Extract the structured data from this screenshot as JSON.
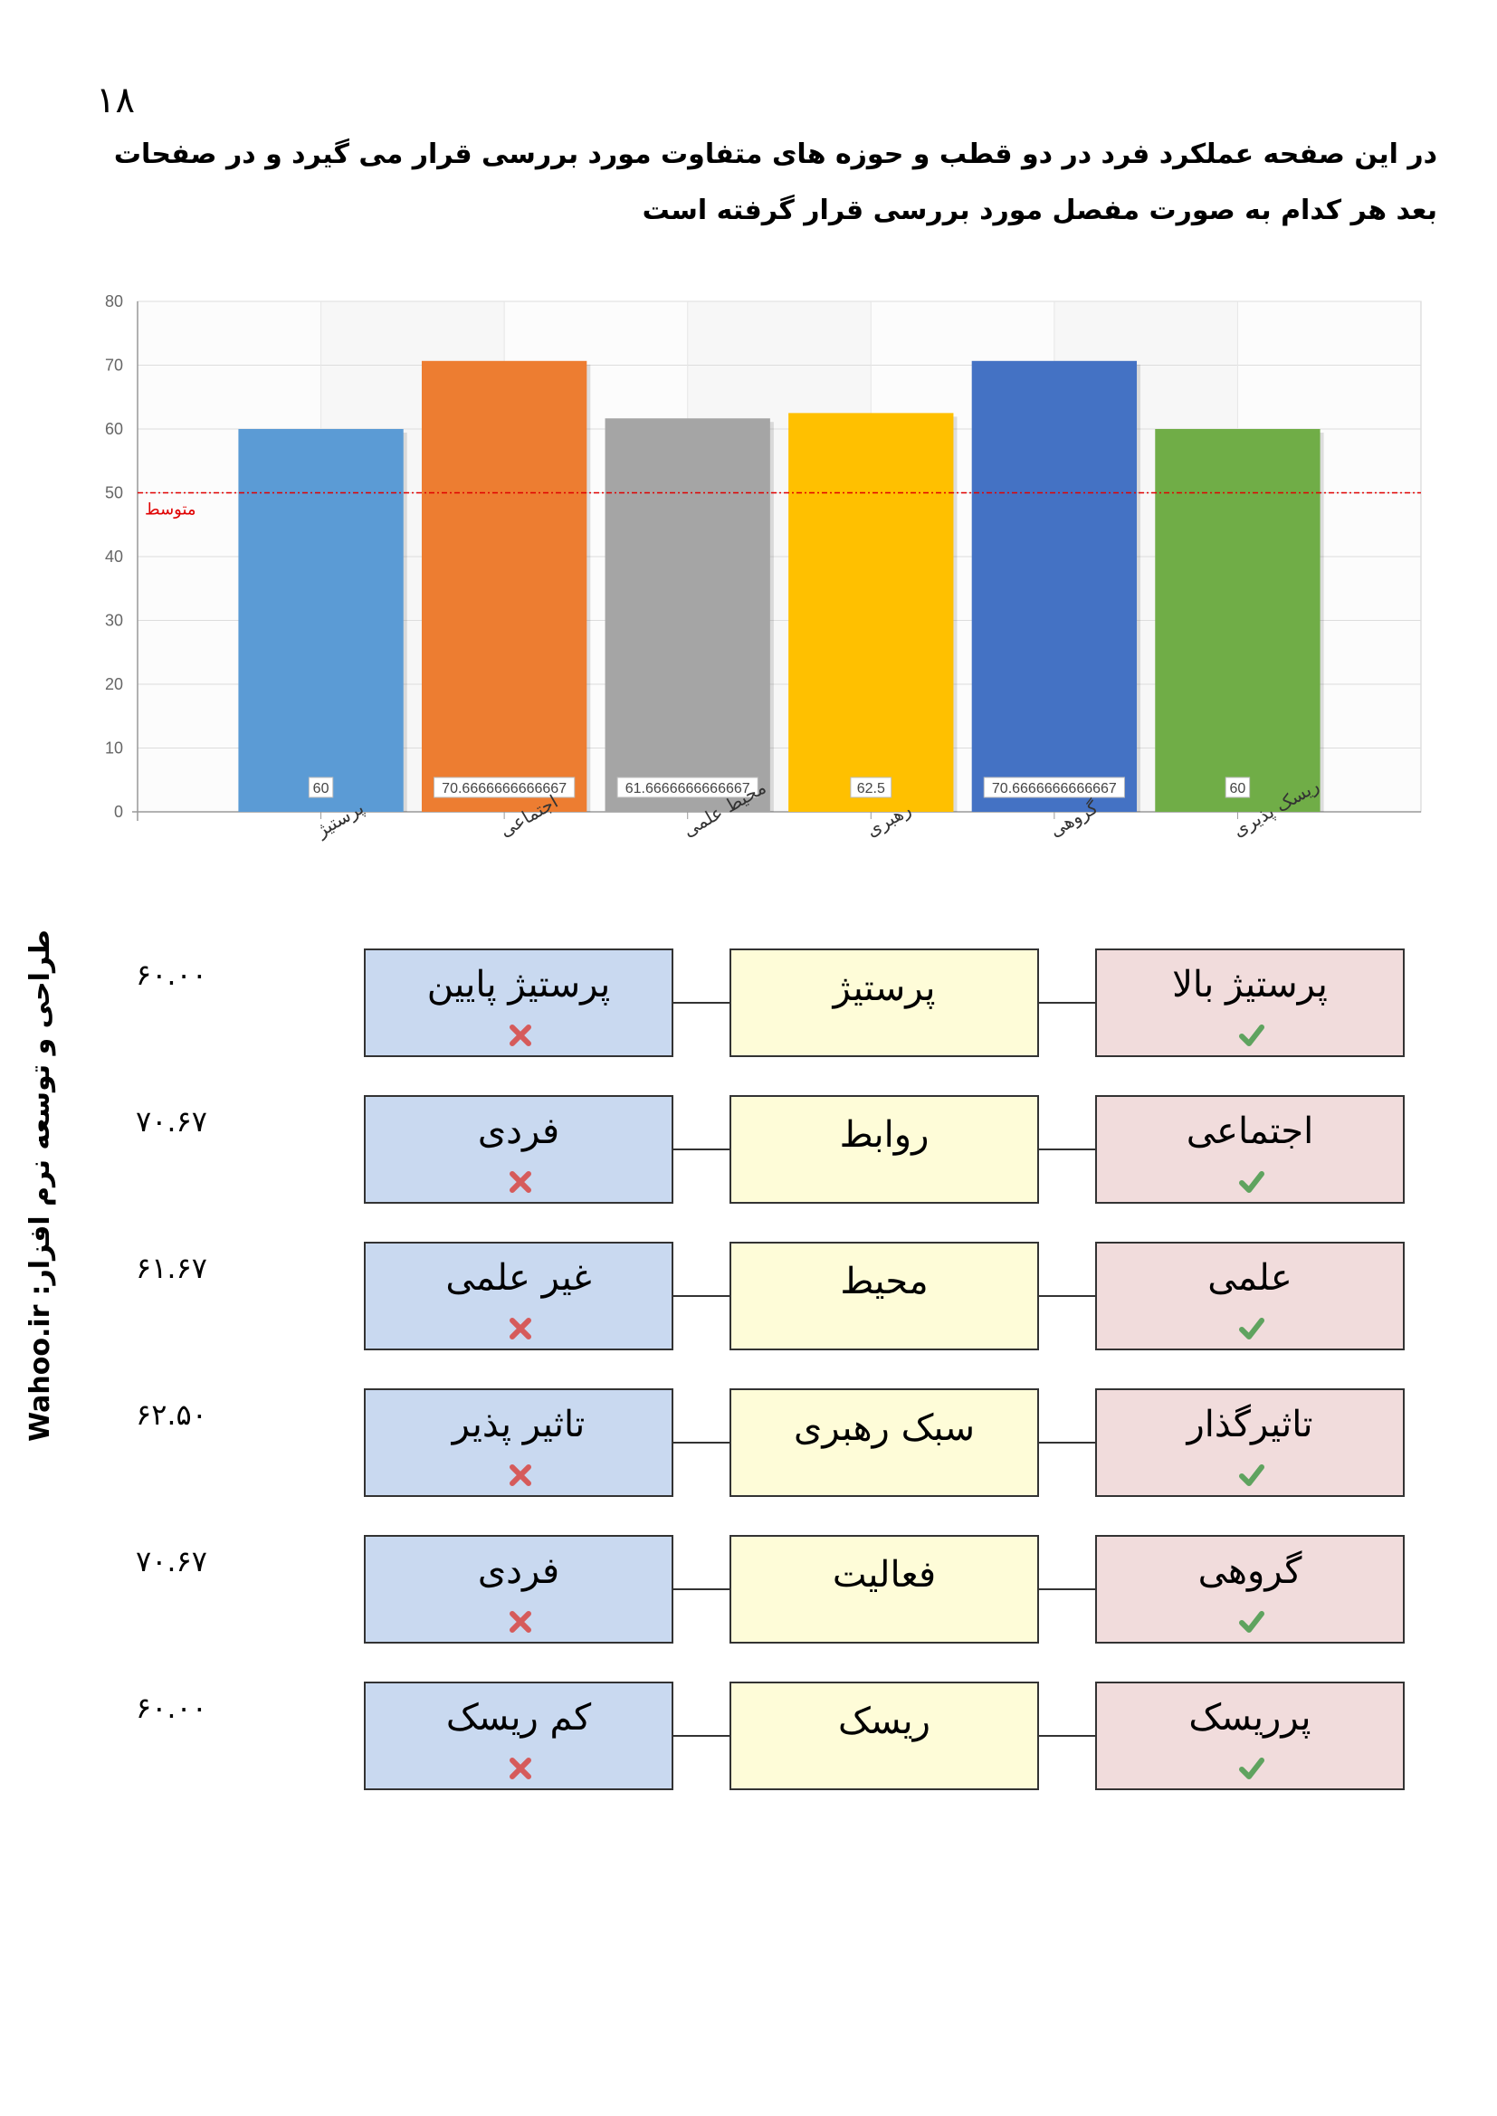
{
  "page_number": "۱۸",
  "intro_text": "در این صفحه عملکرد فرد در دو قطب و حوزه های متفاوت مورد بررسی قرار می گیرد و در صفحات بعد هر کدام به صورت مفصل مورد بررسی قرار گرفته است",
  "side_credit": {
    "site": "Wahoo.ir",
    "text": "طراحی و توسعه نرم افزار:"
  },
  "colors": {
    "low_box": "#c9d9f0",
    "mid_box": "#fefcd8",
    "high_box": "#f1dcdc",
    "check": "#5fa35f",
    "cross": "#d65b5b",
    "average_line": "#e00000"
  },
  "chart_data": {
    "type": "bar",
    "categories": [
      "پرستیژ",
      "اجتماعی",
      "محیط علمی",
      "رهبری",
      "گروهی",
      "ریسک پذیری"
    ],
    "values": [
      60,
      70.6666666666667,
      61.6666666666667,
      62.5,
      70.6666666666667,
      60
    ],
    "value_labels": [
      "60",
      "70.6666666666667",
      "61.6666666666667",
      "62.5",
      "70.6666666666667",
      "60"
    ],
    "colors": [
      "#5b9bd5",
      "#ed7d31",
      "#a5a5a5",
      "#ffc000",
      "#4472c4",
      "#70ad47"
    ],
    "ylim": [
      0,
      80
    ],
    "yticks": [
      0,
      10,
      20,
      30,
      40,
      50,
      60,
      70,
      80
    ],
    "average_line": {
      "value": 50,
      "label": "متوسط"
    },
    "grid": true,
    "title": "",
    "xlabel": "",
    "ylabel": ""
  },
  "rows": [
    {
      "value": "۶۰.۰۰",
      "low": "پرستیژ پایین",
      "mid": "پرستیژ",
      "high": "پرستیژ بالا"
    },
    {
      "value": "۷۰.۶۷",
      "low": "فردی",
      "mid": "روابط",
      "high": "اجتماعی"
    },
    {
      "value": "۶۱.۶۷",
      "low": "غیر علمی",
      "mid": "محیط",
      "high": "علمی"
    },
    {
      "value": "۶۲.۵۰",
      "low": "تاثیر پذیر",
      "mid": "سبک رهبری",
      "high": "تاثیرگذار"
    },
    {
      "value": "۷۰.۶۷",
      "low": "فردی",
      "mid": "فعالیت",
      "high": "گروهی"
    },
    {
      "value": "۶۰.۰۰",
      "low": "کم ریسک",
      "mid": "ریسک",
      "high": "پرریسک"
    }
  ]
}
